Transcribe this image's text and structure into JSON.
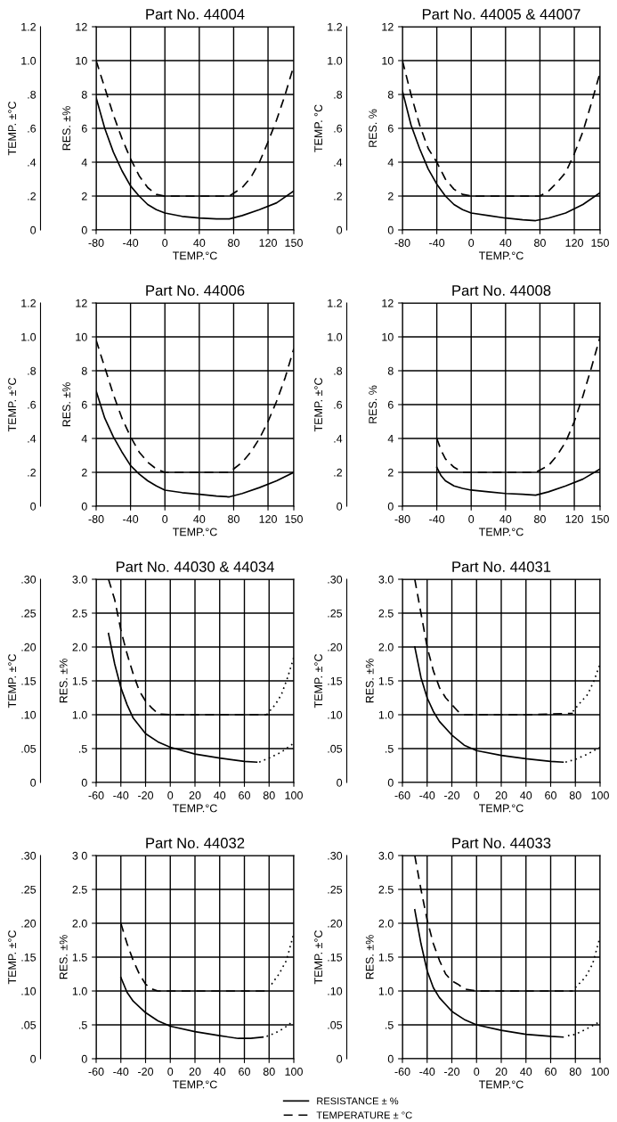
{
  "chart_data": [
    {
      "type": "line",
      "title": "Part No. 44004",
      "xlabel": "TEMP.°C",
      "ylabel": "RES. ±%",
      "y2label": "TEMP. ±°C",
      "grid": true,
      "xlim": [
        -80,
        150
      ],
      "xticks": [
        -80,
        -40,
        0,
        40,
        80,
        120,
        150
      ],
      "ylim": [
        0,
        12
      ],
      "yticks": [
        0,
        2,
        4,
        6,
        8,
        10,
        12
      ],
      "y2lim": [
        0,
        1.2
      ],
      "y2ticks": [
        0,
        {
          "value": 0.2,
          "label": ".2"
        },
        {
          "value": 0.4,
          "label": ".4"
        },
        {
          "value": 0.6,
          "label": ".6"
        },
        {
          "value": 0.8,
          "label": ".8"
        },
        {
          "value": 1.0,
          "label": "1.0"
        },
        {
          "value": 1.2,
          "label": "1.2"
        }
      ],
      "series": [
        {
          "line_style": "solid",
          "axis": "y",
          "color": "#000000",
          "x": [
            -80,
            -70,
            -60,
            -50,
            -40,
            -30,
            -20,
            -10,
            0,
            20,
            40,
            60,
            75,
            90,
            110,
            130,
            150
          ],
          "values": [
            7.8,
            6.0,
            4.6,
            3.5,
            2.6,
            2.0,
            1.5,
            1.2,
            1.0,
            0.8,
            0.7,
            0.65,
            0.65,
            0.85,
            1.2,
            1.6,
            2.3
          ]
        },
        {
          "line_style": "dashed",
          "axis": "y2",
          "color": "#000000",
          "x": [
            -80,
            -70,
            -60,
            -50,
            -40,
            -30,
            -20,
            -10,
            0,
            40,
            75,
            90,
            100,
            110,
            120,
            130,
            140,
            150
          ],
          "values": [
            1.0,
            0.84,
            0.68,
            0.54,
            0.42,
            0.32,
            0.25,
            0.21,
            0.2,
            0.2,
            0.2,
            0.25,
            0.31,
            0.4,
            0.52,
            0.65,
            0.8,
            0.97
          ]
        }
      ]
    },
    {
      "type": "line",
      "title": "Part No. 44005 & 44007",
      "xlabel": "TEMP.°C",
      "ylabel": "RES. %",
      "y2label": "TEMP. °C",
      "grid": true,
      "xlim": [
        -80,
        150
      ],
      "xticks": [
        -80,
        -40,
        0,
        40,
        80,
        120,
        150
      ],
      "ylim": [
        0,
        12
      ],
      "yticks": [
        0,
        2,
        4,
        6,
        8,
        10,
        12
      ],
      "y2lim": [
        0,
        1.2
      ],
      "y2ticks": [
        0,
        {
          "value": 0.2,
          "label": ".2"
        },
        {
          "value": 0.4,
          "label": ".4"
        },
        {
          "value": 0.6,
          "label": ".6"
        },
        {
          "value": 0.8,
          "label": ".8"
        },
        {
          "value": 1.0,
          "label": "1.0"
        },
        {
          "value": 1.2,
          "label": "1.2"
        }
      ],
      "series": [
        {
          "line_style": "solid",
          "axis": "y",
          "color": "#000000",
          "x": [
            -80,
            -70,
            -60,
            -50,
            -40,
            -30,
            -20,
            -10,
            0,
            20,
            40,
            60,
            75,
            90,
            110,
            130,
            150
          ],
          "values": [
            8.2,
            6.2,
            4.8,
            3.6,
            2.7,
            2.0,
            1.5,
            1.2,
            1.0,
            0.85,
            0.7,
            0.6,
            0.55,
            0.7,
            1.0,
            1.5,
            2.2
          ]
        },
        {
          "line_style": "dashed",
          "axis": "y2",
          "color": "#000000",
          "x": [
            -80,
            -70,
            -60,
            -50,
            -40,
            -30,
            -20,
            -10,
            0,
            80,
            90,
            100,
            110,
            120,
            130,
            140,
            150
          ],
          "values": [
            1.0,
            0.8,
            0.62,
            0.48,
            0.4,
            0.3,
            0.24,
            0.21,
            0.2,
            0.2,
            0.23,
            0.28,
            0.34,
            0.45,
            0.58,
            0.75,
            0.93
          ]
        }
      ]
    },
    {
      "type": "line",
      "title": "Part No. 44006",
      "xlabel": "TEMP.°C",
      "ylabel": "RES. ±%",
      "y2label": "TEMP. ±°C",
      "grid": true,
      "xlim": [
        -80,
        150
      ],
      "xticks": [
        -80,
        -40,
        0,
        40,
        80,
        120,
        150
      ],
      "ylim": [
        0,
        12
      ],
      "yticks": [
        0,
        2,
        4,
        6,
        8,
        10,
        12
      ],
      "y2lim": [
        0,
        1.2
      ],
      "y2ticks": [
        0,
        {
          "value": 0.2,
          "label": ".2"
        },
        {
          "value": 0.4,
          "label": ".4"
        },
        {
          "value": 0.6,
          "label": ".6"
        },
        {
          "value": 0.8,
          "label": ".8"
        },
        {
          "value": 1.0,
          "label": "1.0"
        },
        {
          "value": 1.2,
          "label": "1.2"
        }
      ],
      "series": [
        {
          "line_style": "solid",
          "axis": "y",
          "color": "#000000",
          "x": [
            -80,
            -70,
            -60,
            -50,
            -40,
            -30,
            -20,
            -10,
            0,
            20,
            40,
            60,
            75,
            90,
            110,
            130,
            150
          ],
          "values": [
            6.8,
            5.2,
            4.1,
            3.2,
            2.4,
            1.9,
            1.5,
            1.2,
            0.95,
            0.8,
            0.7,
            0.6,
            0.55,
            0.75,
            1.1,
            1.5,
            2.0
          ]
        },
        {
          "line_style": "dashed",
          "axis": "y2",
          "color": "#000000",
          "x": [
            -80,
            -70,
            -60,
            -50,
            -40,
            -30,
            -20,
            -10,
            0,
            40,
            75,
            90,
            100,
            110,
            120,
            130,
            140,
            150
          ],
          "values": [
            0.98,
            0.82,
            0.66,
            0.52,
            0.41,
            0.32,
            0.26,
            0.22,
            0.2,
            0.2,
            0.2,
            0.26,
            0.32,
            0.4,
            0.5,
            0.62,
            0.76,
            0.93
          ]
        }
      ]
    },
    {
      "type": "line",
      "title": "Part No. 44008",
      "xlabel": "TEMP.°C",
      "ylabel": "RES. %",
      "y2label": "TEMP. ±°C",
      "grid": true,
      "xlim": [
        -80,
        150
      ],
      "xticks": [
        -80,
        -40,
        0,
        40,
        80,
        120,
        150
      ],
      "ylim": [
        0,
        12
      ],
      "yticks": [
        0,
        2,
        4,
        6,
        8,
        10,
        12
      ],
      "y2lim": [
        0,
        1.2
      ],
      "y2ticks": [
        0,
        {
          "value": 0.2,
          "label": ".2"
        },
        {
          "value": 0.4,
          "label": ".4"
        },
        {
          "value": 0.6,
          "label": ".6"
        },
        {
          "value": 0.8,
          "label": ".8"
        },
        {
          "value": 1.0,
          "label": "1.0"
        },
        {
          "value": 1.2,
          "label": "1.2"
        }
      ],
      "series": [
        {
          "line_style": "solid",
          "axis": "y",
          "color": "#000000",
          "x": [
            -40,
            -35,
            -30,
            -20,
            -10,
            0,
            20,
            40,
            60,
            75,
            90,
            110,
            130,
            150
          ],
          "values": [
            2.3,
            1.8,
            1.5,
            1.2,
            1.05,
            0.95,
            0.85,
            0.75,
            0.7,
            0.65,
            0.85,
            1.2,
            1.6,
            2.2
          ]
        },
        {
          "line_style": "dashed",
          "axis": "y2",
          "color": "#000000",
          "x": [
            -40,
            -35,
            -30,
            -20,
            -10,
            0,
            40,
            75,
            90,
            100,
            110,
            120,
            130,
            140,
            150
          ],
          "values": [
            0.4,
            0.33,
            0.28,
            0.23,
            0.2,
            0.2,
            0.2,
            0.2,
            0.24,
            0.3,
            0.38,
            0.5,
            0.65,
            0.82,
            1.0
          ]
        }
      ]
    },
    {
      "type": "line",
      "title": "Part No. 44030 & 44034",
      "xlabel": "TEMP.°C",
      "ylabel": "RES. ±%",
      "y2label": "TEMP. ±°C",
      "grid": true,
      "xlim": [
        -60,
        100
      ],
      "xticks": [
        -60,
        -40,
        -20,
        0,
        20,
        40,
        60,
        80,
        100
      ],
      "ylim": [
        0,
        3.0
      ],
      "yticks": [
        0,
        {
          "value": 0.5,
          "label": ".5"
        },
        {
          "value": 1.0,
          "label": "1.0"
        },
        {
          "value": 1.5,
          "label": "1.5"
        },
        {
          "value": 2.0,
          "label": "2.0"
        },
        {
          "value": 2.5,
          "label": "2.5"
        },
        {
          "value": 3.0,
          "label": "3.0"
        }
      ],
      "y2lim": [
        0,
        0.3
      ],
      "y2ticks": [
        0,
        {
          "value": 0.05,
          "label": ".05"
        },
        {
          "value": 0.1,
          "label": ".10"
        },
        {
          "value": 0.15,
          "label": ".15"
        },
        {
          "value": 0.2,
          "label": ".20"
        },
        {
          "value": 0.25,
          "label": ".25"
        },
        {
          "value": 0.3,
          "label": ".30"
        }
      ],
      "series": [
        {
          "line_style": "solid",
          "axis": "y",
          "color": "#000000",
          "x": [
            -50,
            -45,
            -40,
            -35,
            -30,
            -20,
            -10,
            0,
            20,
            40,
            60,
            70
          ],
          "values": [
            2.2,
            1.75,
            1.4,
            1.15,
            0.95,
            0.72,
            0.6,
            0.52,
            0.42,
            0.36,
            0.31,
            0.3
          ]
        },
        {
          "line_style": "dotted",
          "axis": "y",
          "color": "#000000",
          "x": [
            72,
            80,
            90,
            100
          ],
          "values": [
            0.3,
            0.36,
            0.45,
            0.58
          ]
        },
        {
          "line_style": "dashed",
          "axis": "y2",
          "color": "#000000",
          "x": [
            -50,
            -45,
            -40,
            -35,
            -30,
            -25,
            -20,
            -15,
            -12,
            -10,
            0,
            40,
            78
          ],
          "values": [
            0.3,
            0.27,
            0.225,
            0.19,
            0.16,
            0.135,
            0.12,
            0.11,
            0.105,
            0.101,
            0.1,
            0.1,
            0.1
          ]
        },
        {
          "line_style": "dotted",
          "axis": "y2",
          "color": "#000000",
          "x": [
            78,
            85,
            90,
            95,
            100
          ],
          "values": [
            0.1,
            0.115,
            0.13,
            0.155,
            0.185
          ]
        }
      ]
    },
    {
      "type": "line",
      "title": "Part No. 44031",
      "xlabel": "TEMP.°C",
      "ylabel": "RES. ±%",
      "y2label": "TEMP. ±°C",
      "grid": true,
      "xlim": [
        -60,
        100
      ],
      "xticks": [
        -60,
        -40,
        -20,
        0,
        20,
        40,
        60,
        80,
        100
      ],
      "ylim": [
        0,
        3.0
      ],
      "yticks": [
        0,
        {
          "value": 0.5,
          "label": ".5"
        },
        {
          "value": 1.0,
          "label": "1.0"
        },
        {
          "value": 1.5,
          "label": "1.5"
        },
        {
          "value": 2.0,
          "label": "2.0"
        },
        {
          "value": 2.5,
          "label": "2.5"
        },
        {
          "value": 3.0,
          "label": "3.0"
        }
      ],
      "y2lim": [
        0,
        0.3
      ],
      "y2ticks": [
        0,
        {
          "value": 0.05,
          "label": ".05"
        },
        {
          "value": 0.1,
          "label": ".10"
        },
        {
          "value": 0.15,
          "label": ".15"
        },
        {
          "value": 0.2,
          "label": ".20"
        },
        {
          "value": 0.25,
          "label": ".25"
        },
        {
          "value": 0.3,
          "label": ".30"
        }
      ],
      "series": [
        {
          "line_style": "solid",
          "axis": "y",
          "color": "#000000",
          "x": [
            -50,
            -45,
            -40,
            -35,
            -30,
            -20,
            -10,
            0,
            20,
            40,
            60,
            70
          ],
          "values": [
            2.0,
            1.55,
            1.25,
            1.05,
            0.9,
            0.7,
            0.55,
            0.47,
            0.4,
            0.35,
            0.31,
            0.3
          ]
        },
        {
          "line_style": "dotted",
          "axis": "y",
          "color": "#000000",
          "x": [
            72,
            80,
            90,
            100
          ],
          "values": [
            0.3,
            0.34,
            0.42,
            0.52
          ]
        },
        {
          "line_style": "dashed",
          "axis": "y2",
          "color": "#000000",
          "x": [
            -50,
            -45,
            -40,
            -35,
            -30,
            -25,
            -20,
            -15,
            -10,
            0,
            40,
            78
          ],
          "values": [
            0.3,
            0.25,
            0.2,
            0.165,
            0.14,
            0.125,
            0.115,
            0.105,
            0.1,
            0.1,
            0.1,
            0.102
          ]
        },
        {
          "line_style": "dotted",
          "axis": "y2",
          "color": "#000000",
          "x": [
            78,
            85,
            90,
            95,
            100
          ],
          "values": [
            0.105,
            0.12,
            0.13,
            0.15,
            0.175
          ]
        }
      ]
    },
    {
      "type": "line",
      "title": "Part No. 44032",
      "xlabel": "TEMP.°C",
      "ylabel": "RES. ±%",
      "y2label": "TEMP. ±°C",
      "grid": true,
      "legend": "bottom right",
      "xlim": [
        -60,
        100
      ],
      "xticks": [
        -60,
        -40,
        -20,
        0,
        20,
        40,
        60,
        80,
        100
      ],
      "ylim": [
        0,
        3.0
      ],
      "yticks": [
        0,
        {
          "value": 0.5,
          "label": ".5"
        },
        {
          "value": 1.0,
          "label": "1.0"
        },
        {
          "value": 1.5,
          "label": "1.5"
        },
        {
          "value": 2.0,
          "label": "2.0"
        },
        {
          "value": 2.5,
          "label": "2.5"
        },
        {
          "value": 3.0,
          "label": "3 0"
        }
      ],
      "y2lim": [
        0,
        0.3
      ],
      "y2ticks": [
        0,
        {
          "value": 0.05,
          "label": ".05"
        },
        {
          "value": 0.1,
          "label": ".10"
        },
        {
          "value": 0.15,
          "label": ".15"
        },
        {
          "value": 0.2,
          "label": ".20"
        },
        {
          "value": 0.25,
          "label": ".25"
        },
        {
          "value": 0.3,
          "label": ".30"
        }
      ],
      "series": [
        {
          "name": "RESISTANCE ± %",
          "line_style": "solid",
          "axis": "y",
          "color": "#000000",
          "x": [
            -40,
            -35,
            -30,
            -20,
            -10,
            0,
            20,
            40,
            55,
            65,
            75
          ],
          "values": [
            1.2,
            0.98,
            0.85,
            0.68,
            0.56,
            0.48,
            0.4,
            0.34,
            0.3,
            0.3,
            0.32
          ]
        },
        {
          "line_style": "dotted",
          "axis": "y",
          "color": "#000000",
          "x": [
            78,
            85,
            92,
            100
          ],
          "values": [
            0.33,
            0.38,
            0.45,
            0.56
          ]
        },
        {
          "name": "TEMPERATURE ± °C",
          "line_style": "dashed",
          "axis": "y2",
          "color": "#000000",
          "x": [
            -40,
            -35,
            -30,
            -25,
            -20,
            -15,
            -10,
            0,
            40,
            80
          ],
          "values": [
            0.2,
            0.17,
            0.145,
            0.125,
            0.11,
            0.103,
            0.1,
            0.1,
            0.1,
            0.1
          ]
        },
        {
          "line_style": "dotted",
          "axis": "y2",
          "color": "#000000",
          "x": [
            82,
            88,
            94,
            100
          ],
          "values": [
            0.11,
            0.125,
            0.145,
            0.185
          ]
        }
      ]
    },
    {
      "type": "line",
      "title": "Part No. 44033",
      "xlabel": "TEMP.°C",
      "ylabel": "RES. ±%",
      "y2label": "TEMP. ±°C",
      "grid": true,
      "xlim": [
        -60,
        100
      ],
      "xticks": [
        -60,
        -40,
        -20,
        0,
        20,
        40,
        60,
        80,
        100
      ],
      "ylim": [
        0,
        3.0
      ],
      "yticks": [
        0,
        {
          "value": 0.5,
          "label": ".5"
        },
        {
          "value": 1.0,
          "label": "1.0"
        },
        {
          "value": 1.5,
          "label": "1.5"
        },
        {
          "value": 2.0,
          "label": "2.0"
        },
        {
          "value": 2.5,
          "label": "2.5"
        },
        {
          "value": 3.0,
          "label": "3.0"
        }
      ],
      "y2lim": [
        0,
        0.3
      ],
      "y2ticks": [
        0,
        {
          "value": 0.05,
          "label": ".05"
        },
        {
          "value": 0.1,
          "label": ".10"
        },
        {
          "value": 0.15,
          "label": ".15"
        },
        {
          "value": 0.2,
          "label": ".20"
        },
        {
          "value": 0.25,
          "label": ".25"
        },
        {
          "value": 0.3,
          "label": ".30"
        }
      ],
      "series": [
        {
          "line_style": "solid",
          "axis": "y",
          "color": "#000000",
          "x": [
            -50,
            -45,
            -40,
            -35,
            -30,
            -20,
            -10,
            0,
            20,
            40,
            60,
            70
          ],
          "values": [
            2.2,
            1.7,
            1.3,
            1.05,
            0.9,
            0.7,
            0.58,
            0.5,
            0.42,
            0.36,
            0.33,
            0.32
          ]
        },
        {
          "line_style": "dotted",
          "axis": "y",
          "color": "#000000",
          "x": [
            74,
            80,
            90,
            100
          ],
          "values": [
            0.34,
            0.36,
            0.45,
            0.55
          ]
        },
        {
          "line_style": "dashed",
          "axis": "y2",
          "color": "#000000",
          "x": [
            -50,
            -45,
            -40,
            -35,
            -30,
            -25,
            -20,
            -15,
            -10,
            0,
            78
          ],
          "values": [
            0.3,
            0.25,
            0.205,
            0.17,
            0.145,
            0.125,
            0.115,
            0.11,
            0.103,
            0.1,
            0.1
          ]
        },
        {
          "line_style": "dotted",
          "axis": "y2",
          "color": "#000000",
          "x": [
            80,
            88,
            94,
            100
          ],
          "values": [
            0.105,
            0.12,
            0.14,
            0.18
          ]
        }
      ]
    }
  ]
}
